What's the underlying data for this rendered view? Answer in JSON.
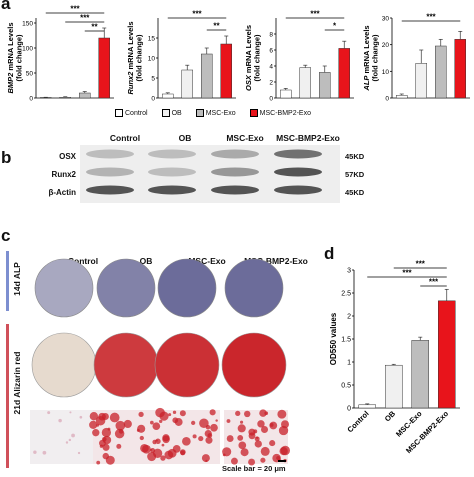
{
  "panel_labels": {
    "a": "a",
    "b": "b",
    "c": "c",
    "d": "d"
  },
  "colors": {
    "control": "#ffffff",
    "ob": "#f0f0f0",
    "msc_exo": "#bdbdbd",
    "msc_bmp2_exo": "#e8141b",
    "alp_stain": "#5a5a9e",
    "alizarin_stain": "#c8202a"
  },
  "legend": {
    "items": [
      "Control",
      "OB",
      "MSC-Exo",
      "MSC-BMP2-Exo"
    ]
  },
  "panel_b": {
    "columns": [
      "Control",
      "OB",
      "MSC-Exo",
      "MSC-BMP2-Exo"
    ],
    "rows": [
      {
        "label": "OSX",
        "kd": "45KD",
        "intensity": [
          0.25,
          0.25,
          0.35,
          0.65
        ]
      },
      {
        "label": "Runx2",
        "kd": "57KD",
        "intensity": [
          0.3,
          0.25,
          0.45,
          0.8
        ]
      },
      {
        "label": "β-Actin",
        "kd": "45KD",
        "intensity": [
          0.8,
          0.8,
          0.8,
          0.8
        ]
      }
    ]
  },
  "panel_c": {
    "columns": [
      "Control",
      "OB",
      "MSC-Exo",
      "MSC-BMP2-Exo"
    ],
    "row1": "14d ALP",
    "row2": "21d Alizarin red",
    "alp_intensity": [
      0.35,
      0.6,
      0.75,
      0.75
    ],
    "ar_intensity": [
      0.05,
      0.85,
      0.9,
      0.95
    ],
    "scale_bar": "Scale bar = 20 μm"
  },
  "chart_data": [
    {
      "type": "bar",
      "ylabel": "BMP2 mRNA Levels\n(fold change)",
      "categories": [
        "Control",
        "OB",
        "MSC-Exo",
        "MSC-BMP2-Exo"
      ],
      "values": [
        1,
        1.5,
        10,
        120
      ],
      "errors": [
        0.5,
        1,
        3,
        20
      ],
      "ylim": [
        0,
        160
      ],
      "yticks": [
        0,
        50,
        100,
        150
      ],
      "significance": [
        {
          "from": 0,
          "to": 3,
          "label": "***"
        },
        {
          "from": 1,
          "to": 3,
          "label": "***"
        },
        {
          "from": 2,
          "to": 3,
          "label": "**"
        }
      ]
    },
    {
      "type": "bar",
      "ylabel": "Runx2 mRNA Levels\n(fold change)",
      "categories": [
        "Control",
        "OB",
        "MSC-Exo",
        "MSC-BMP2-Exo"
      ],
      "values": [
        1,
        7,
        11,
        13.5
      ],
      "errors": [
        0.3,
        1.2,
        1.5,
        2
      ],
      "ylim": [
        0,
        20
      ],
      "yticks": [
        0,
        5,
        10,
        15
      ],
      "significance": [
        {
          "from": 0,
          "to": 3,
          "label": "***"
        },
        {
          "from": 2,
          "to": 3,
          "label": "**"
        }
      ]
    },
    {
      "type": "bar",
      "ylabel": "OSX mRNA Levels\n(fold change)",
      "categories": [
        "Control",
        "OB",
        "MSC-Exo",
        "MSC-BMP2-Exo"
      ],
      "values": [
        1,
        3.8,
        3.2,
        6.2
      ],
      "errors": [
        0.2,
        0.3,
        0.8,
        0.9
      ],
      "ylim": [
        0,
        10
      ],
      "yticks": [
        0,
        2,
        4,
        6,
        8
      ],
      "significance": [
        {
          "from": 0,
          "to": 3,
          "label": "***"
        },
        {
          "from": 2,
          "to": 3,
          "label": "*"
        }
      ]
    },
    {
      "type": "bar",
      "ylabel": "ALP mRNA Levels\n(fold change)",
      "categories": [
        "Control",
        "OB",
        "MSC-Exo",
        "MSC-BMP2-Exo"
      ],
      "values": [
        1,
        13,
        19.5,
        22
      ],
      "errors": [
        0.5,
        5,
        2.5,
        3
      ],
      "ylim": [
        0,
        30
      ],
      "yticks": [
        0,
        10,
        20,
        30
      ],
      "significance": [
        {
          "from": 0,
          "to": 3,
          "label": "***"
        }
      ]
    },
    {
      "type": "bar",
      "ylabel": "OD550 values",
      "categories": [
        "Control",
        "OB",
        "MSC-Exo",
        "MSC-BMP2-Exo"
      ],
      "values": [
        0.07,
        0.93,
        1.47,
        2.33
      ],
      "errors": [
        0.02,
        0.02,
        0.07,
        0.25
      ],
      "ylim": [
        0,
        3.0
      ],
      "yticks": [
        0,
        0.5,
        1.0,
        1.5,
        2.0,
        2.5,
        3.0
      ],
      "significance": [
        {
          "from": 1,
          "to": 3,
          "label": "***"
        },
        {
          "from": 0,
          "to": 3,
          "label": "***"
        },
        {
          "from": 2,
          "to": 3,
          "label": "***"
        }
      ]
    }
  ]
}
